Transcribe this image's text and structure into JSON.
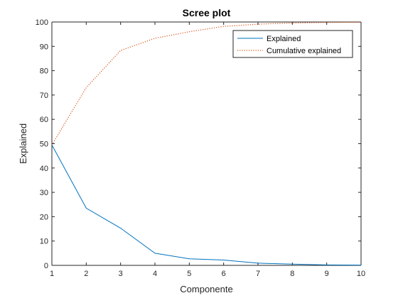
{
  "chart_data": {
    "type": "line",
    "title": "Scree plot",
    "xlabel": "Componente",
    "ylabel": "Explained",
    "xlim": [
      1,
      10
    ],
    "ylim": [
      0,
      100
    ],
    "x_ticks": [
      1,
      2,
      3,
      4,
      5,
      6,
      7,
      8,
      9,
      10
    ],
    "y_ticks": [
      0,
      10,
      20,
      30,
      40,
      50,
      60,
      70,
      80,
      90,
      100
    ],
    "grid": false,
    "legend_position": "top-right",
    "x": [
      1,
      2,
      3,
      4,
      5,
      6,
      7,
      8,
      9,
      10
    ],
    "series": [
      {
        "name": "Explained",
        "values": [
          49.5,
          23.5,
          15.3,
          5.0,
          2.7,
          2.2,
          0.9,
          0.5,
          0.2,
          0.1
        ],
        "color": "#0072BD",
        "line_style": "solid"
      },
      {
        "name": "Cumulative explained",
        "values": [
          49.5,
          73.0,
          88.3,
          93.3,
          96.0,
          98.2,
          99.1,
          99.6,
          99.8,
          99.9
        ],
        "color": "#D95319",
        "line_style": "dotted"
      }
    ]
  }
}
